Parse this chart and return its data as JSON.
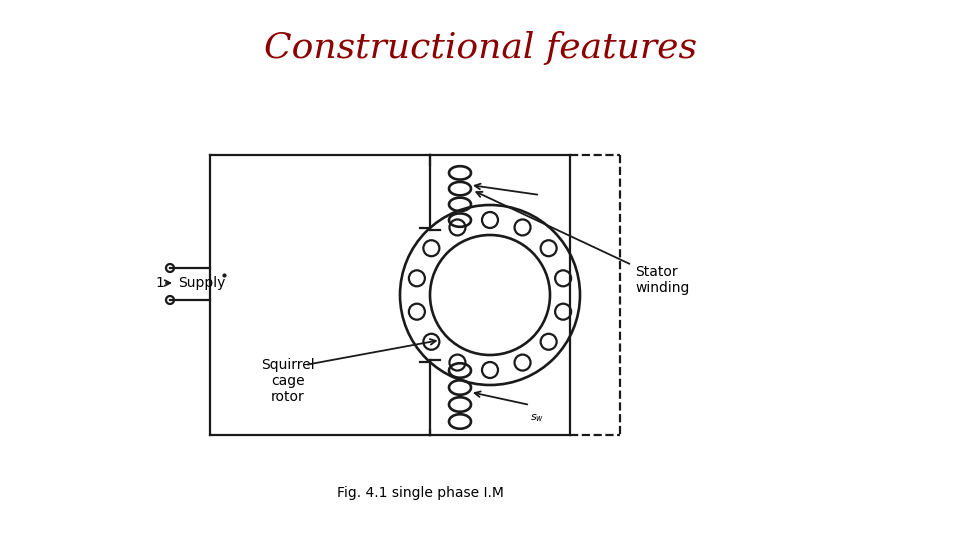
{
  "title": "Constructional features",
  "title_color": "#8B0000",
  "title_fontsize": 26,
  "caption": "Fig. 4.1 single phase I.M",
  "caption_fontsize": 10,
  "bg_color": "#ffffff",
  "diagram_color": "#1a1a1a",
  "label_supply": "1→ Supply",
  "label_rotor": "Squirrel\ncage\nrotor",
  "label_stator": "Stator\nwinding",
  "n_rotor_bars": 14,
  "n_coil_loops": 4,
  "lw": 1.6
}
